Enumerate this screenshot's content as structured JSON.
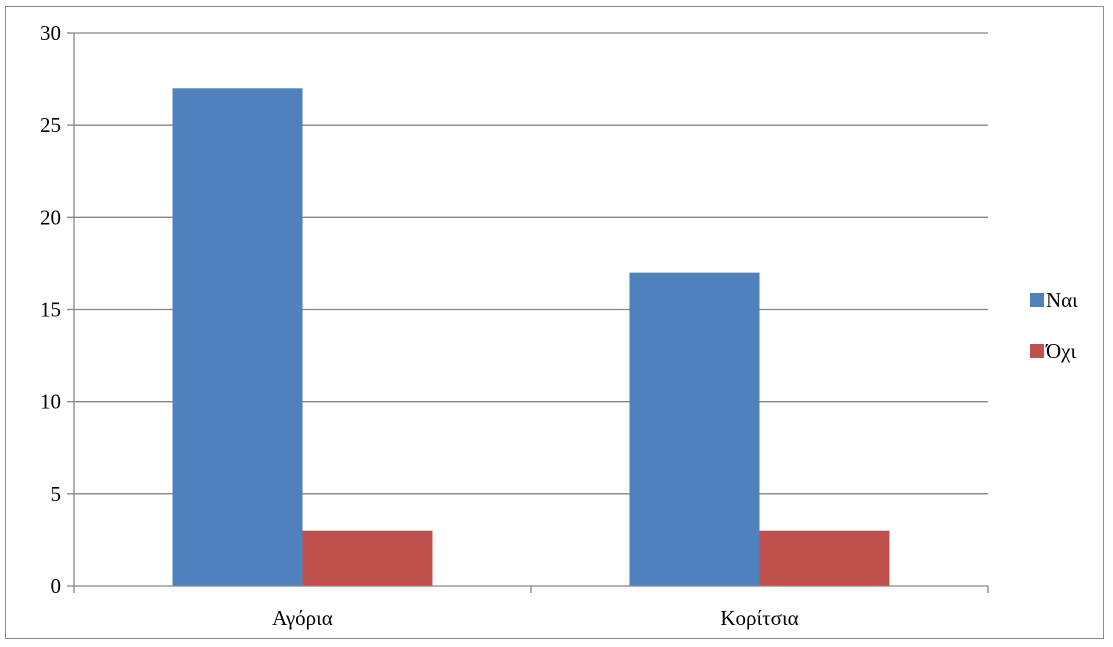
{
  "chart_data": {
    "type": "bar",
    "categories": [
      "Αγόρια",
      "Κορίτσια"
    ],
    "series": [
      {
        "name": "Ναι",
        "values": [
          27,
          17
        ],
        "color": "#4F81BD"
      },
      {
        "name": "Όχι",
        "values": [
          3,
          3
        ],
        "color": "#C0504D"
      }
    ],
    "ylim": [
      0,
      30
    ],
    "yticks": [
      0,
      5,
      10,
      15,
      20,
      25,
      30
    ],
    "title": "",
    "xlabel": "",
    "ylabel": "",
    "grid": "horizontal",
    "legend_position": "right",
    "colors": {
      "grid": "#868686",
      "axis": "#868686",
      "frame": "#8c8c8c"
    }
  }
}
